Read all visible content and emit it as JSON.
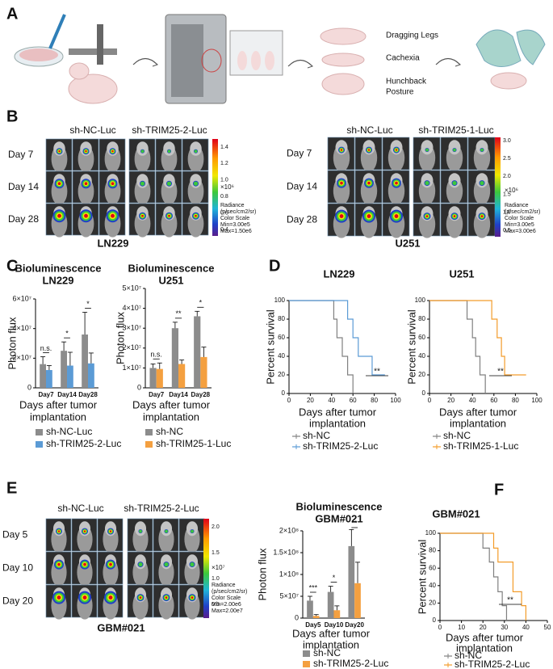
{
  "panels": {
    "labels": [
      "A",
      "B",
      "C",
      "D",
      "E",
      "F"
    ],
    "a": {
      "symptoms": [
        "Dragging Legs",
        "Cachexia"
      ],
      "symptom_3": [
        "Hunchback",
        "Posture"
      ]
    },
    "b": {
      "ln229": {
        "groups": [
          "sh-NC-Luc",
          "sh-TRIM25-2-Luc"
        ],
        "days": [
          "Day 7",
          "Day 14",
          "Day 28"
        ],
        "name": "LN229",
        "colorbar": {
          "ticks": [
            "1.4",
            "1.2",
            "1.0",
            "0.8",
            "0.6",
            "0.4"
          ],
          "unit": "×10⁶",
          "notes": [
            "Radiance",
            "(p/sec/cm2/sr)",
            "Color Scale",
            "Min=3.00e5",
            "Max=1.50e6"
          ]
        }
      },
      "u251": {
        "groups": [
          "sh-NC-Luc",
          "sh-TRIM25-1-Luc"
        ],
        "days": [
          "Day 7",
          "Day 14",
          "Day 28"
        ],
        "name": "U251",
        "colorbar": {
          "ticks": [
            "3.0",
            "2.5",
            "2.0",
            "1.5",
            "1.0",
            "0.5"
          ],
          "unit": "×10⁶",
          "notes": [
            "Radiance",
            "(p/sec/cm2/sr)",
            "Color Scale",
            "Min=3.00e5",
            "Max=3.00e6"
          ]
        }
      }
    },
    "e": {
      "groups": [
        "sh-NC-Luc",
        "sh-TRIM25-2-Luc"
      ],
      "days": [
        "Day 5",
        "Day 10",
        "Day 20"
      ],
      "name": "GBM#021",
      "colorbar": {
        "ticks": [
          "2.0",
          "1.5",
          "1.0",
          "0.5"
        ],
        "unit": "×10⁷",
        "notes": [
          "Radiance",
          "(p/sec/cm2/sr)",
          "Color Scale",
          "Min=2.00e6",
          "Max=2.00e7"
        ]
      }
    }
  },
  "chart_data": [
    {
      "type": "bar",
      "title": "Bioluminescence",
      "subtitle": "LN229",
      "ylabel": "Photon flux",
      "xlabel": [
        "Days after tumor",
        "implantation"
      ],
      "categories": [
        "Day7",
        "Day14",
        "Day28"
      ],
      "series": [
        {
          "name": "sh-NC-Luc",
          "color": "#8c8c8c",
          "values": [
            16000000,
            25000000,
            36000000
          ],
          "errors": [
            5000000,
            6000000,
            15000000
          ]
        },
        {
          "name": "sh-TRIM25-2-Luc",
          "color": "#5b9bd5",
          "values": [
            12000000,
            15000000,
            16500000
          ],
          "errors": [
            3000000,
            9000000,
            7000000
          ]
        }
      ],
      "annotations": [
        "n.s.",
        "*",
        "*"
      ],
      "ylim": [
        0,
        60000000
      ],
      "yticks": [
        0,
        {
          "value": 20000000,
          "label": "2×10⁷"
        },
        {
          "value": 40000000,
          "label": "4×10⁷"
        },
        {
          "value": 60000000,
          "label": "6×10⁷"
        }
      ]
    },
    {
      "type": "bar",
      "title": "Bioluminescence",
      "subtitle": "U251",
      "ylabel": "Photon flux",
      "xlabel": [
        "Days after tumor",
        "implantation"
      ],
      "categories": [
        "Day7",
        "Day14",
        "Day28"
      ],
      "series": [
        {
          "name": "sh-NC",
          "color": "#8c8c8c",
          "values": [
            10000000,
            30000000,
            36000000
          ],
          "errors": [
            2000000,
            3000000,
            2500000
          ]
        },
        {
          "name": "sh-TRIM25-1-Luc",
          "color": "#f4a040",
          "values": [
            9500000,
            12000000,
            15500000
          ],
          "errors": [
            3000000,
            2000000,
            5000000
          ]
        }
      ],
      "annotations": [
        "n.s.",
        "**",
        "*"
      ],
      "ylim": [
        0,
        50000000
      ],
      "yticks": [
        0,
        {
          "value": 10000000,
          "label": "1×10⁷"
        },
        {
          "value": 20000000,
          "label": "2×10⁷"
        },
        {
          "value": 30000000,
          "label": "3×10⁷"
        },
        {
          "value": 40000000,
          "label": "4×10⁷"
        },
        {
          "value": 50000000,
          "label": "5×10⁷"
        }
      ]
    },
    {
      "type": "line",
      "title": "LN229",
      "ylabel": "Percent survival",
      "xlabel": [
        "Days after tumor",
        "implantation"
      ],
      "series": [
        {
          "name": "sh-NC",
          "color": "#808080",
          "x": [
            0,
            42,
            42,
            45,
            45,
            50,
            50,
            55,
            55,
            60,
            60
          ],
          "values": [
            100,
            100,
            80,
            80,
            60,
            60,
            40,
            40,
            20,
            20,
            0
          ]
        },
        {
          "name": "sh-TRIM25-2-Luc",
          "color": "#5b9bd5",
          "x": [
            0,
            55,
            55,
            60,
            60,
            65,
            65,
            78,
            78,
            90
          ],
          "values": [
            100,
            100,
            80,
            80,
            60,
            60,
            40,
            40,
            20,
            20
          ]
        }
      ],
      "annotations": [
        "**"
      ],
      "xlim": [
        0,
        100
      ],
      "xticks": [
        0,
        20,
        40,
        60,
        80,
        100
      ],
      "ylim": [
        0,
        100
      ],
      "yticks": [
        0,
        20,
        40,
        60,
        80,
        100
      ]
    },
    {
      "type": "line",
      "title": "U251",
      "ylabel": "Percent survival",
      "xlabel": [
        "Days after tumor",
        "implantation"
      ],
      "series": [
        {
          "name": "sh-NC",
          "color": "#808080",
          "x": [
            0,
            35,
            35,
            40,
            40,
            43,
            43,
            47,
            47,
            52,
            52
          ],
          "values": [
            100,
            100,
            80,
            80,
            60,
            60,
            40,
            40,
            20,
            20,
            0
          ]
        },
        {
          "name": "sh-TRIM25-1-Luc",
          "color": "#f39c2a",
          "x": [
            0,
            58,
            58,
            63,
            63,
            67,
            67,
            70,
            70,
            90
          ],
          "values": [
            100,
            100,
            80,
            80,
            60,
            60,
            40,
            40,
            20,
            20
          ]
        }
      ],
      "annotations": [
        "**"
      ],
      "xlim": [
        0,
        100
      ],
      "xticks": [
        0,
        20,
        40,
        60,
        80,
        100
      ],
      "ylim": [
        0,
        100
      ],
      "yticks": [
        0,
        20,
        40,
        60,
        80,
        100
      ]
    },
    {
      "type": "bar",
      "title": "Bioluminescence",
      "subtitle": "GBM#021",
      "ylabel": "Photon flux",
      "xlabel": [
        "Days after tumor",
        "implantation"
      ],
      "categories": [
        "Day5",
        "Day10",
        "Day20"
      ],
      "series": [
        {
          "name": "sh-NC",
          "color": "#8c8c8c",
          "values": [
            40000000,
            60000000,
            165000000
          ],
          "errors": [
            10000000,
            13000000,
            38000000
          ]
        },
        {
          "name": "sh-TRIM25-2-Luc",
          "color": "#f4a040",
          "values": [
            5000000,
            18000000,
            80000000
          ],
          "errors": [
            3000000,
            10000000,
            48000000
          ]
        }
      ],
      "annotations": [
        "***",
        "*",
        "**"
      ],
      "ylim": [
        0,
        200000000
      ],
      "yticks": [
        0,
        {
          "value": 50000000,
          "label": "5×10⁷"
        },
        {
          "value": 100000000,
          "label": "1×10⁸"
        },
        {
          "value": 150000000,
          "label": "1.5×10⁸"
        },
        {
          "value": 200000000,
          "label": "2×10⁸"
        }
      ]
    },
    {
      "type": "line",
      "title": "GBM#021",
      "ylabel": "Percent survival",
      "xlabel": [
        "Days after tumor",
        "implantation"
      ],
      "series": [
        {
          "name": "sh-NC",
          "color": "#808080",
          "x": [
            0,
            20,
            20,
            23,
            23,
            25,
            25,
            27,
            27,
            29,
            29,
            31,
            31
          ],
          "values": [
            100,
            100,
            83,
            83,
            67,
            67,
            50,
            50,
            33,
            33,
            17,
            17,
            0
          ]
        },
        {
          "name": "sh-TRIM25-2-Luc",
          "color": "#f39c2a",
          "x": [
            0,
            25,
            25,
            27,
            27,
            34,
            34,
            38,
            38,
            40,
            40
          ],
          "values": [
            100,
            100,
            83,
            83,
            67,
            67,
            33,
            33,
            17,
            17,
            0
          ]
        }
      ],
      "annotations": [
        "**"
      ],
      "xlim": [
        0,
        50
      ],
      "xticks": [
        0,
        10,
        20,
        30,
        40,
        50
      ],
      "ylim": [
        0,
        100
      ],
      "yticks": [
        0,
        20,
        40,
        60,
        80,
        100
      ]
    }
  ]
}
